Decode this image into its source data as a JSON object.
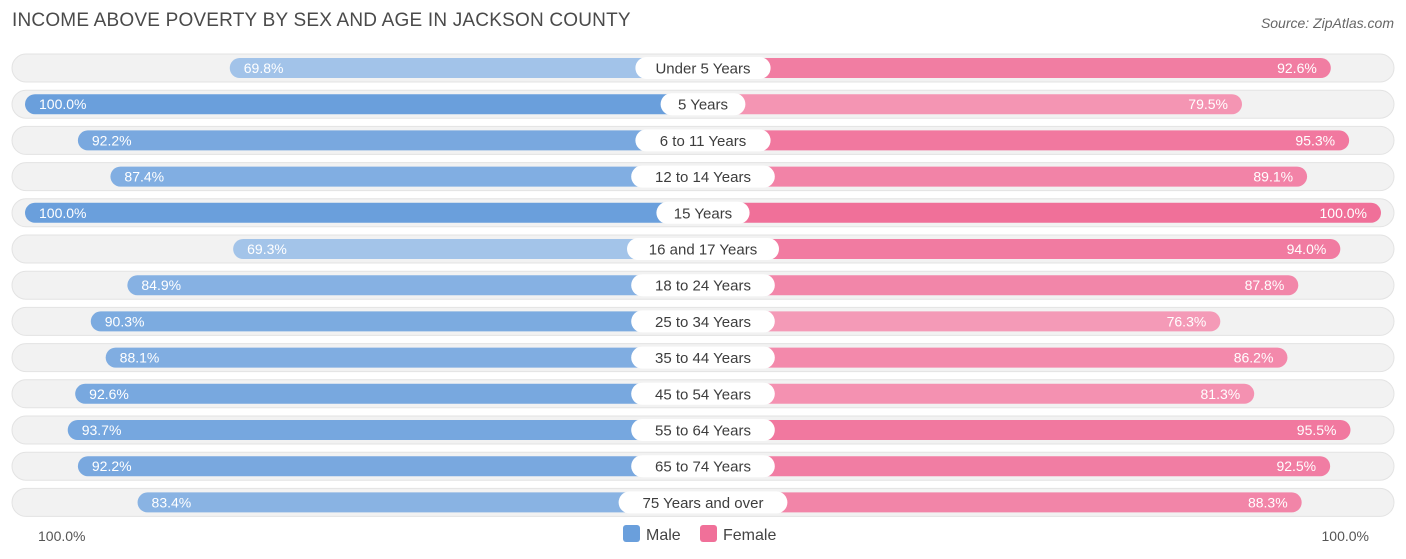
{
  "title": "INCOME ABOVE POVERTY BY SEX AND AGE IN JACKSON COUNTY",
  "source": "Source: ZipAtlas.com",
  "colors": {
    "male": "#6a9fdc",
    "female": "#f07099",
    "track": "#efefef"
  },
  "legend": {
    "male": "Male",
    "female": "Female"
  },
  "axis": {
    "left_label": "100.0%",
    "right_label": "100.0%"
  },
  "chart_data": {
    "type": "bar",
    "orientation": "horizontal-diverging",
    "title": "INCOME ABOVE POVERTY BY SEX AND AGE IN JACKSON COUNTY",
    "categories": [
      "Under 5 Years",
      "5 Years",
      "6 to 11 Years",
      "12 to 14 Years",
      "15 Years",
      "16 and 17 Years",
      "18 to 24 Years",
      "25 to 34 Years",
      "35 to 44 Years",
      "45 to 54 Years",
      "55 to 64 Years",
      "65 to 74 Years",
      "75 Years and over"
    ],
    "series": [
      {
        "name": "Male",
        "values": [
          69.8,
          100.0,
          92.2,
          87.4,
          100.0,
          69.3,
          84.9,
          90.3,
          88.1,
          92.6,
          93.7,
          92.2,
          83.4
        ],
        "labels": [
          "69.8%",
          "100.0%",
          "92.2%",
          "87.4%",
          "100.0%",
          "69.3%",
          "84.9%",
          "90.3%",
          "88.1%",
          "92.6%",
          "93.7%",
          "92.2%",
          "83.4%"
        ]
      },
      {
        "name": "Female",
        "values": [
          92.6,
          79.5,
          95.3,
          89.1,
          100.0,
          94.0,
          87.8,
          76.3,
          86.2,
          81.3,
          95.5,
          92.5,
          88.3
        ],
        "labels": [
          "92.6%",
          "79.5%",
          "95.3%",
          "89.1%",
          "100.0%",
          "94.0%",
          "87.8%",
          "76.3%",
          "86.2%",
          "81.3%",
          "95.5%",
          "92.5%",
          "88.3%"
        ]
      }
    ],
    "xlim": [
      0,
      100
    ],
    "legend_position": "bottom-center"
  }
}
